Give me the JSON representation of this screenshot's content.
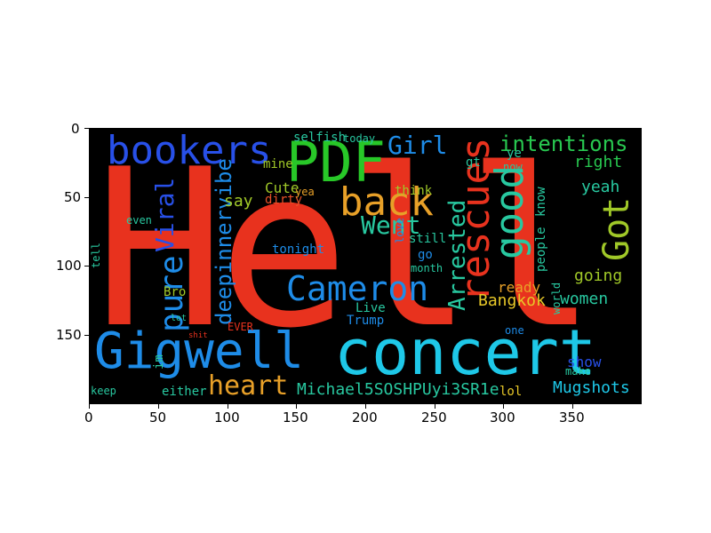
{
  "image": {
    "type": "word cloud",
    "x_ticks": [
      "0",
      "50",
      "100",
      "150",
      "200",
      "250",
      "300",
      "350"
    ],
    "y_ticks": [
      "0",
      "50",
      "100",
      "150"
    ],
    "background": "#000000"
  },
  "words": [
    {
      "text": "Hell",
      "color": "#e8321e"
    },
    {
      "text": "concert",
      "color": "#1ec8e8"
    },
    {
      "text": "Gigwell",
      "color": "#1e8ce8"
    },
    {
      "text": "PDF",
      "color": "#28c828"
    },
    {
      "text": "bookers",
      "color": "#2850e8"
    },
    {
      "text": "back",
      "color": "#e8a028"
    },
    {
      "text": "rescues",
      "color": "#e8321e"
    },
    {
      "text": "Cameron",
      "color": "#1e8ce8"
    },
    {
      "text": "good",
      "color": "#28c8a0"
    },
    {
      "text": "Got",
      "color": "#a0c828"
    },
    {
      "text": "pure",
      "color": "#1e8ce8"
    },
    {
      "text": "heart",
      "color": "#e8a028"
    },
    {
      "text": "Went",
      "color": "#28c8a0"
    },
    {
      "text": "Girl",
      "color": "#1e8ce8"
    },
    {
      "text": "intentions",
      "color": "#28c850"
    },
    {
      "text": "Arrested",
      "color": "#28c8a0"
    },
    {
      "text": "Viral",
      "color": "#2850e8"
    },
    {
      "text": "deepinnervibe",
      "color": "#1e8ce8"
    },
    {
      "text": "Michael5SOSHPUyi3SR1e",
      "color": "#28c8a0"
    },
    {
      "text": "Mugshots",
      "color": "#1ec8e8"
    },
    {
      "text": "Bangkok",
      "color": "#e8c828"
    },
    {
      "text": "women",
      "color": "#28c8a0"
    },
    {
      "text": "going",
      "color": "#a0c828"
    },
    {
      "text": "yeah",
      "color": "#28c8a0"
    },
    {
      "text": "right",
      "color": "#28c850"
    },
    {
      "text": "selfish",
      "color": "#28c8a0"
    },
    {
      "text": "tonight",
      "color": "#1e8ce8"
    },
    {
      "text": "Trump",
      "color": "#1e8ce8"
    },
    {
      "text": "Live",
      "color": "#28c8a0"
    },
    {
      "text": "ready",
      "color": "#e8a028"
    },
    {
      "text": "people",
      "color": "#28c8a0"
    },
    {
      "text": "know",
      "color": "#28c8a0"
    },
    {
      "text": "show",
      "color": "#2850e8"
    },
    {
      "text": "Cute",
      "color": "#a0c828"
    },
    {
      "text": "say",
      "color": "#a0c828"
    },
    {
      "text": "mine",
      "color": "#a0c828"
    },
    {
      "text": "dirty",
      "color": "#e85028"
    },
    {
      "text": "yea",
      "color": "#e8a028"
    },
    {
      "text": "today",
      "color": "#28c8a0"
    },
    {
      "text": "think",
      "color": "#a0c828"
    },
    {
      "text": "gt",
      "color": "#28c8a0"
    },
    {
      "text": "ye",
      "color": "#28c8a0"
    },
    {
      "text": "now",
      "color": "#28c8a0"
    },
    {
      "text": "still",
      "color": "#28c8a0"
    },
    {
      "text": "go",
      "color": "#1e8ce8"
    },
    {
      "text": "month",
      "color": "#28c8a0"
    },
    {
      "text": "love",
      "color": "#1e8ce8"
    },
    {
      "text": "lol",
      "color": "#e8c828"
    },
    {
      "text": "either",
      "color": "#28c8a0"
    },
    {
      "text": "keep",
      "color": "#28c8a0"
    },
    {
      "text": "im",
      "color": "#28c8a0"
    },
    {
      "text": "Bro",
      "color": "#a0c828"
    },
    {
      "text": "tell",
      "color": "#28c8a0"
    },
    {
      "text": "even",
      "color": "#28c8a0"
    },
    {
      "text": "EVER",
      "color": "#e8321e"
    },
    {
      "text": "make",
      "color": "#28c8a0"
    },
    {
      "text": "world",
      "color": "#28c8a0"
    },
    {
      "text": "one",
      "color": "#1e8ce8"
    },
    {
      "text": "lot",
      "color": "#28c8a0"
    },
    {
      "text": "shit",
      "color": "#e8321e"
    }
  ]
}
